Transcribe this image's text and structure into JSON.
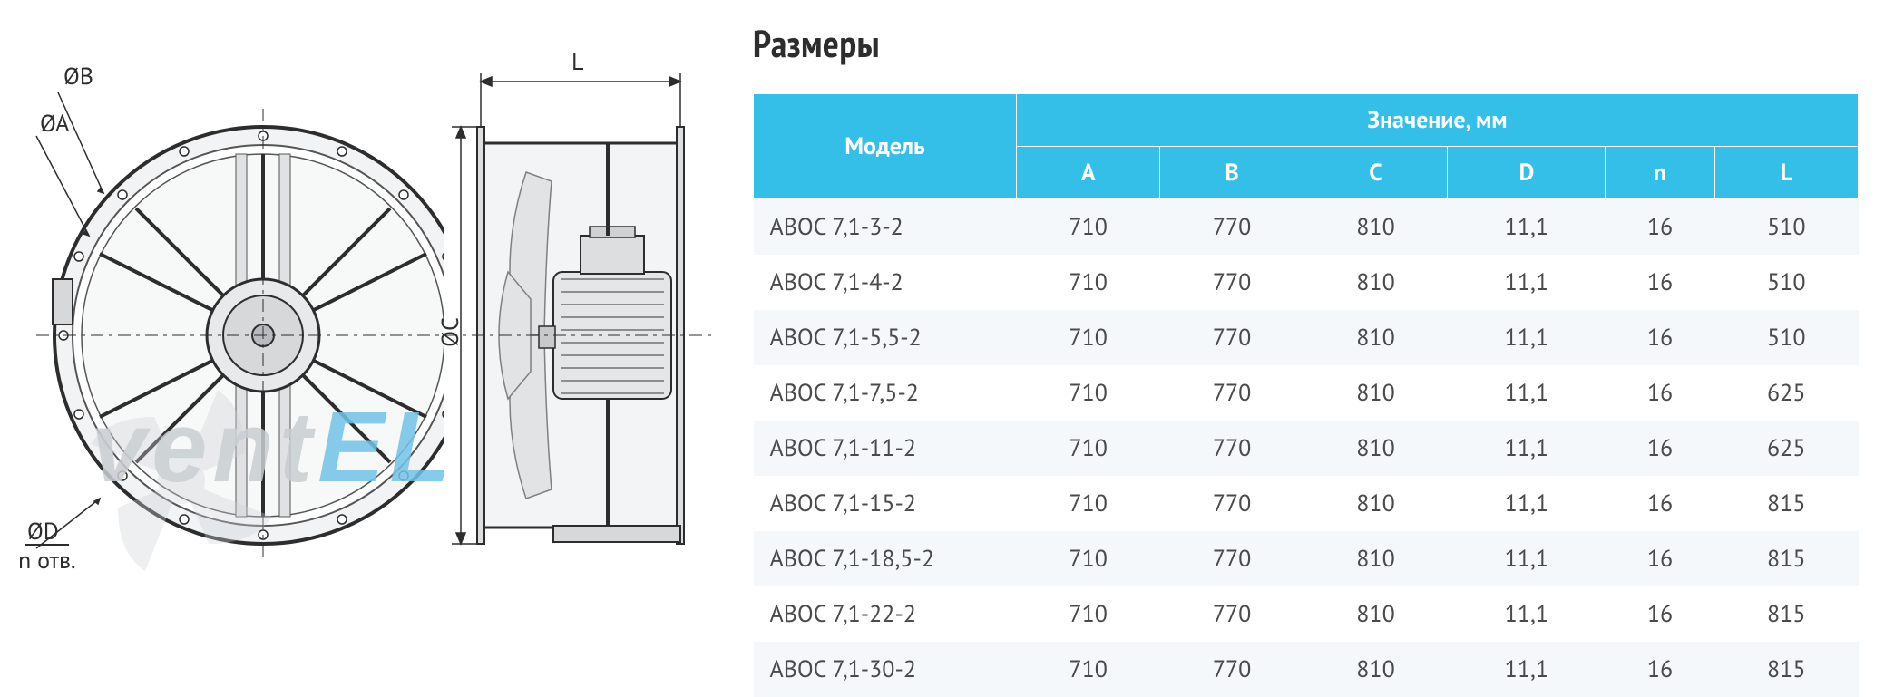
{
  "title": "Размеры",
  "diagram_labels": {
    "ob": "ØB",
    "oa": "ØA",
    "od": "ØD",
    "n_otv": "n отв.",
    "oc": "ØC",
    "L": "L"
  },
  "watermark_a": "vent",
  "watermark_b": "EL",
  "table": {
    "header_model": "Модель",
    "header_value": "Значение, мм",
    "columns": [
      "A",
      "B",
      "C",
      "D",
      "n",
      "L"
    ],
    "rows": [
      {
        "model": "АВОС 7,1-3-2",
        "values": [
          "710",
          "770",
          "810",
          "11,1",
          "16",
          "510"
        ]
      },
      {
        "model": "АВОС 7,1-4-2",
        "values": [
          "710",
          "770",
          "810",
          "11,1",
          "16",
          "510"
        ]
      },
      {
        "model": "АВОС 7,1-5,5-2",
        "values": [
          "710",
          "770",
          "810",
          "11,1",
          "16",
          "510"
        ]
      },
      {
        "model": "АВОС 7,1-7,5-2",
        "values": [
          "710",
          "770",
          "810",
          "11,1",
          "16",
          "625"
        ]
      },
      {
        "model": "АВОС 7,1-11-2",
        "values": [
          "710",
          "770",
          "810",
          "11,1",
          "16",
          "625"
        ]
      },
      {
        "model": "АВОС 7,1-15-2",
        "values": [
          "710",
          "770",
          "810",
          "11,1",
          "16",
          "815"
        ]
      },
      {
        "model": "АВОС 7,1-18,5-2",
        "values": [
          "710",
          "770",
          "810",
          "11,1",
          "16",
          "815"
        ]
      },
      {
        "model": "АВОС 7,1-22-2",
        "values": [
          "710",
          "770",
          "810",
          "11,1",
          "16",
          "815"
        ]
      },
      {
        "model": "АВОС 7,1-30-2",
        "values": [
          "710",
          "770",
          "810",
          "11,1",
          "16",
          "815"
        ]
      }
    ]
  },
  "style": {
    "header_bg": "#33bfe8",
    "header_fg": "#ffffff",
    "row_odd_bg": "#f5f8fa",
    "row_even_bg": "#ffffff",
    "text_color": "#4a4a4a",
    "title_color": "#2d2d2d",
    "diagram_stroke": "#2d2d2d",
    "diagram_fill_light": "#e8eaec",
    "diagram_fill_mid": "#c4c7ca"
  }
}
